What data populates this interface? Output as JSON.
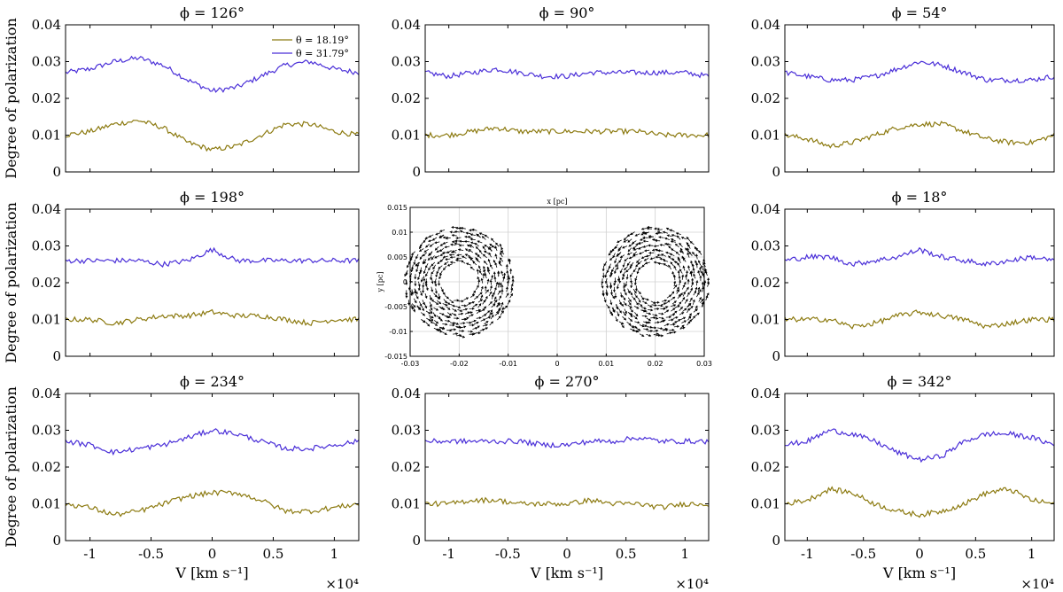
{
  "chart_data": {
    "type": "line",
    "layout": "3x3 grid of line panels with a vector-field panel in the center",
    "ylabel": "Degree of polarization",
    "xlabel": "V [km s⁻¹]",
    "x_multiplier": "×10⁴",
    "xlim": [
      -1.2,
      1.2
    ],
    "ylim": [
      0,
      0.04
    ],
    "x_ticks": [
      "-1",
      "-0.5",
      "0",
      "0.5",
      "1"
    ],
    "y_ticks": [
      "0",
      "0.01",
      "0.02",
      "0.03",
      "0.04"
    ],
    "legend": [
      {
        "name": "θ = 18.19°",
        "color": "#8c7a10"
      },
      {
        "name": "θ = 31.79°",
        "color": "#4a2fd8"
      }
    ],
    "panels": [
      {
        "title": "ϕ = 126°",
        "series": [
          {
            "name": "θ = 31.79°",
            "x": [
              -1.2,
              -1.0,
              -0.8,
              -0.6,
              -0.4,
              -0.2,
              0.0,
              0.2,
              0.4,
              0.6,
              0.8,
              1.0,
              1.2
            ],
            "y": [
              0.027,
              0.028,
              0.03,
              0.031,
              0.029,
              0.025,
              0.022,
              0.023,
              0.026,
              0.029,
              0.03,
              0.028,
              0.027
            ]
          },
          {
            "name": "θ = 18.19°",
            "x": [
              -1.2,
              -1.0,
              -0.8,
              -0.6,
              -0.4,
              -0.2,
              0.0,
              0.2,
              0.4,
              0.6,
              0.8,
              1.0,
              1.2
            ],
            "y": [
              0.01,
              0.011,
              0.013,
              0.014,
              0.012,
              0.008,
              0.006,
              0.007,
              0.01,
              0.013,
              0.013,
              0.011,
              0.01
            ]
          }
        ]
      },
      {
        "title": "ϕ = 90°",
        "series": [
          {
            "name": "θ = 31.79°",
            "x": [
              -1.2,
              -1.0,
              -0.8,
              -0.6,
              -0.4,
              -0.2,
              0.0,
              0.2,
              0.4,
              0.6,
              0.8,
              1.0,
              1.2
            ],
            "y": [
              0.027,
              0.026,
              0.027,
              0.028,
              0.027,
              0.026,
              0.026,
              0.027,
              0.027,
              0.027,
              0.027,
              0.027,
              0.026
            ]
          },
          {
            "name": "θ = 18.19°",
            "x": [
              -1.2,
              -1.0,
              -0.8,
              -0.6,
              -0.4,
              -0.2,
              0.0,
              0.2,
              0.4,
              0.6,
              0.8,
              1.0,
              1.2
            ],
            "y": [
              0.01,
              0.01,
              0.011,
              0.012,
              0.011,
              0.011,
              0.011,
              0.011,
              0.011,
              0.011,
              0.01,
              0.01,
              0.01
            ]
          }
        ]
      },
      {
        "title": "ϕ = 54°",
        "series": [
          {
            "name": "θ = 31.79°",
            "x": [
              -1.2,
              -1.0,
              -0.8,
              -0.6,
              -0.4,
              -0.2,
              0.0,
              0.2,
              0.4,
              0.6,
              0.8,
              1.0,
              1.2
            ],
            "y": [
              0.027,
              0.026,
              0.025,
              0.025,
              0.026,
              0.028,
              0.03,
              0.029,
              0.027,
              0.025,
              0.025,
              0.025,
              0.026
            ]
          },
          {
            "name": "θ = 18.19°",
            "x": [
              -1.2,
              -1.0,
              -0.8,
              -0.6,
              -0.4,
              -0.2,
              0.0,
              0.2,
              0.4,
              0.6,
              0.8,
              1.0,
              1.2
            ],
            "y": [
              0.01,
              0.009,
              0.007,
              0.008,
              0.01,
              0.012,
              0.013,
              0.013,
              0.011,
              0.009,
              0.008,
              0.008,
              0.01
            ]
          }
        ]
      },
      {
        "title": "ϕ = 198°",
        "series": [
          {
            "name": "θ = 31.79°",
            "x": [
              -1.2,
              -1.0,
              -0.8,
              -0.6,
              -0.4,
              -0.2,
              0.0,
              0.2,
              0.4,
              0.6,
              0.8,
              1.0,
              1.2
            ],
            "y": [
              0.026,
              0.026,
              0.026,
              0.026,
              0.025,
              0.026,
              0.029,
              0.026,
              0.026,
              0.026,
              0.026,
              0.026,
              0.026
            ]
          },
          {
            "name": "θ = 18.19°",
            "x": [
              -1.2,
              -1.0,
              -0.8,
              -0.6,
              -0.4,
              -0.2,
              0.0,
              0.2,
              0.4,
              0.6,
              0.8,
              1.0,
              1.2
            ],
            "y": [
              0.01,
              0.01,
              0.009,
              0.01,
              0.011,
              0.011,
              0.012,
              0.011,
              0.011,
              0.01,
              0.009,
              0.01,
              0.01
            ]
          }
        ]
      },
      {
        "title": "",
        "type": "quiver",
        "xlabel": "x [pc]",
        "ylabel": "y [pc]",
        "xlim": [
          -0.03,
          0.03
        ],
        "ylim": [
          -0.015,
          0.015
        ],
        "x_ticks": [
          "-0.03",
          "-0.02",
          "-0.01",
          "0",
          "0.01",
          "0.02",
          "0.03"
        ],
        "y_ticks": [
          "-0.015",
          "-0.01",
          "-0.005",
          "0",
          "0.005",
          "0.01",
          "0.015"
        ],
        "rings": [
          {
            "center": [
              -0.02,
              0.0
            ],
            "r_inner": 0.004,
            "r_outer": 0.011
          },
          {
            "center": [
              0.02,
              0.0
            ],
            "r_inner": 0.004,
            "r_outer": 0.011
          }
        ]
      },
      {
        "title": "ϕ = 18°",
        "series": [
          {
            "name": "θ = 31.79°",
            "x": [
              -1.2,
              -1.0,
              -0.8,
              -0.6,
              -0.4,
              -0.2,
              0.0,
              0.2,
              0.4,
              0.6,
              0.8,
              1.0,
              1.2
            ],
            "y": [
              0.026,
              0.027,
              0.027,
              0.025,
              0.026,
              0.027,
              0.029,
              0.027,
              0.026,
              0.025,
              0.026,
              0.027,
              0.026
            ]
          },
          {
            "name": "θ = 18.19°",
            "x": [
              -1.2,
              -1.0,
              -0.8,
              -0.6,
              -0.4,
              -0.2,
              0.0,
              0.2,
              0.4,
              0.6,
              0.8,
              1.0,
              1.2
            ],
            "y": [
              0.01,
              0.01,
              0.01,
              0.008,
              0.009,
              0.011,
              0.012,
              0.011,
              0.01,
              0.008,
              0.009,
              0.01,
              0.01
            ]
          }
        ]
      },
      {
        "title": "ϕ = 234°",
        "series": [
          {
            "name": "θ = 31.79°",
            "x": [
              -1.2,
              -1.0,
              -0.8,
              -0.6,
              -0.4,
              -0.2,
              0.0,
              0.2,
              0.4,
              0.6,
              0.8,
              1.0,
              1.2
            ],
            "y": [
              0.027,
              0.026,
              0.024,
              0.025,
              0.026,
              0.028,
              0.03,
              0.029,
              0.027,
              0.025,
              0.025,
              0.026,
              0.027
            ]
          },
          {
            "name": "θ = 18.19°",
            "x": [
              -1.2,
              -1.0,
              -0.8,
              -0.6,
              -0.4,
              -0.2,
              0.0,
              0.2,
              0.4,
              0.6,
              0.8,
              1.0,
              1.2
            ],
            "y": [
              0.01,
              0.009,
              0.007,
              0.008,
              0.01,
              0.012,
              0.013,
              0.013,
              0.011,
              0.008,
              0.008,
              0.009,
              0.01
            ]
          }
        ]
      },
      {
        "title": "ϕ = 270°",
        "series": [
          {
            "name": "θ = 31.79°",
            "x": [
              -1.2,
              -1.0,
              -0.8,
              -0.6,
              -0.4,
              -0.2,
              0.0,
              0.2,
              0.4,
              0.6,
              0.8,
              1.0,
              1.2
            ],
            "y": [
              0.027,
              0.027,
              0.027,
              0.027,
              0.027,
              0.026,
              0.026,
              0.027,
              0.027,
              0.028,
              0.027,
              0.027,
              0.027
            ]
          },
          {
            "name": "θ = 18.19°",
            "x": [
              -1.2,
              -1.0,
              -0.8,
              -0.6,
              -0.4,
              -0.2,
              0.0,
              0.2,
              0.4,
              0.6,
              0.8,
              1.0,
              1.2
            ],
            "y": [
              0.01,
              0.01,
              0.011,
              0.011,
              0.01,
              0.01,
              0.01,
              0.011,
              0.01,
              0.01,
              0.009,
              0.01,
              0.01
            ]
          }
        ]
      },
      {
        "title": "ϕ = 342°",
        "series": [
          {
            "name": "θ = 31.79°",
            "x": [
              -1.2,
              -1.0,
              -0.8,
              -0.6,
              -0.4,
              -0.2,
              0.0,
              0.2,
              0.4,
              0.6,
              0.8,
              1.0,
              1.2
            ],
            "y": [
              0.026,
              0.027,
              0.03,
              0.029,
              0.027,
              0.024,
              0.022,
              0.023,
              0.027,
              0.029,
              0.029,
              0.028,
              0.026
            ]
          },
          {
            "name": "θ = 18.19°",
            "x": [
              -1.2,
              -1.0,
              -0.8,
              -0.6,
              -0.4,
              -0.2,
              0.0,
              0.2,
              0.4,
              0.6,
              0.8,
              1.0,
              1.2
            ],
            "y": [
              0.01,
              0.011,
              0.014,
              0.013,
              0.01,
              0.008,
              0.007,
              0.008,
              0.01,
              0.013,
              0.014,
              0.011,
              0.01
            ]
          }
        ]
      }
    ]
  }
}
